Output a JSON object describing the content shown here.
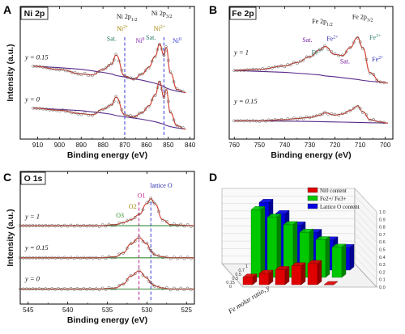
{
  "panel_letters": [
    "A",
    "B",
    "C",
    "D"
  ],
  "chart_data": [
    {
      "panel": "A",
      "type": "line",
      "title": "Ni 2p",
      "xlabel": "Binding energy (eV)",
      "ylabel": "Intensity (a.u.)",
      "xlim": [
        918,
        838
      ],
      "x_reversed": true,
      "xticks": [
        910,
        900,
        890,
        880,
        870,
        860,
        850,
        840
      ],
      "series": [
        {
          "name": "y = 0.15",
          "x": [
            912,
            900,
            890,
            885,
            880,
            876,
            874,
            870,
            866,
            862,
            859,
            856,
            854,
            852,
            851,
            849,
            846,
            842
          ],
          "y": [
            2.9,
            2.75,
            2.55,
            2.5,
            2.75,
            3.0,
            3.4,
            2.45,
            2.3,
            2.55,
            2.85,
            3.35,
            3.9,
            3.4,
            3.75,
            2.6,
            1.85,
            1.7
          ]
        },
        {
          "name": "y = 0",
          "x": [
            912,
            900,
            890,
            885,
            880,
            876,
            874,
            870,
            866,
            862,
            859,
            856,
            854,
            852,
            851,
            849,
            846,
            842
          ],
          "y": [
            1.0,
            0.9,
            0.75,
            0.7,
            0.95,
            1.15,
            1.5,
            0.7,
            0.6,
            0.8,
            1.1,
            1.6,
            2.2,
            1.5,
            1.85,
            0.8,
            0.2,
            0.05
          ]
        }
      ],
      "annotations": [
        "Sat.",
        "Ni 2p1/2",
        "Ni2+",
        "Ni0",
        "Sat.",
        "Ni 2p3/2",
        "Ni2+",
        "Ni0"
      ],
      "dashed_line_x": [
        870,
        852
      ]
    },
    {
      "panel": "B",
      "type": "line",
      "title": "Fe 2p",
      "xlabel": "Binding energy (eV)",
      "ylabel": "",
      "xlim": [
        762,
        697
      ],
      "x_reversed": true,
      "xticks": [
        760,
        750,
        740,
        730,
        720,
        710,
        700
      ],
      "series": [
        {
          "name": "y = 1",
          "x": [
            760,
            750,
            740,
            735,
            730,
            726,
            724,
            720,
            717,
            714,
            711,
            709,
            706,
            702,
            699
          ],
          "y": [
            3.0,
            3.05,
            3.2,
            3.35,
            3.6,
            3.9,
            4.05,
            3.7,
            3.65,
            4.0,
            4.45,
            4.0,
            2.9,
            2.5,
            2.45
          ]
        },
        {
          "name": "y = 0.15",
          "x": [
            760,
            750,
            740,
            735,
            730,
            726,
            724,
            720,
            717,
            714,
            711,
            709,
            706,
            702,
            699
          ],
          "y": [
            0.8,
            0.8,
            0.85,
            0.9,
            0.95,
            1.05,
            1.15,
            1.05,
            1.1,
            1.25,
            1.45,
            1.2,
            0.85,
            0.75,
            0.7
          ]
        }
      ],
      "annotations": [
        "Fe 2p1/2",
        "Fe 2p3/2",
        "Sat.",
        "Fe3+",
        "Fe2+",
        "Sat.",
        "Fe3+",
        "Fe2+"
      ]
    },
    {
      "panel": "C",
      "type": "line",
      "title": "O 1s",
      "xlabel": "Binding energy (eV)",
      "ylabel": "Intensity (a.u.)",
      "xlim": [
        546,
        524
      ],
      "x_reversed": true,
      "xticks": [
        545,
        540,
        535,
        530,
        525
      ],
      "series": [
        {
          "name": "y = 1",
          "x": [
            546,
            540,
            536,
            534,
            533,
            532,
            531,
            530,
            529.5,
            529,
            528,
            527,
            524
          ],
          "y": [
            3.2,
            3.2,
            3.2,
            3.25,
            3.35,
            3.5,
            3.75,
            4.3,
            4.55,
            4.3,
            3.5,
            3.25,
            3.2
          ]
        },
        {
          "name": "y = 0.15",
          "x": [
            546,
            540,
            536,
            534,
            533,
            532,
            531,
            530,
            529.5,
            529,
            528,
            527,
            524
          ],
          "y": [
            1.6,
            1.6,
            1.6,
            1.65,
            1.85,
            2.3,
            2.6,
            2.3,
            1.95,
            1.75,
            1.65,
            1.6,
            1.6
          ]
        },
        {
          "name": "y = 0",
          "x": [
            546,
            540,
            536,
            534,
            533,
            532,
            531,
            530,
            529.5,
            529,
            528,
            527,
            524
          ],
          "y": [
            0.05,
            0.05,
            0.05,
            0.1,
            0.3,
            0.7,
            0.95,
            0.6,
            0.35,
            0.2,
            0.1,
            0.05,
            0.05
          ]
        }
      ],
      "annotations": [
        "O3",
        "O2",
        "O1",
        "lattice O"
      ],
      "dashed_line_x": [
        531,
        529.5
      ]
    },
    {
      "panel": "D",
      "type": "bar",
      "subtype": "3d",
      "ylabel": "Fe molar ratio, y",
      "categories": [
        "0",
        "0.15",
        "0.3",
        "0.5",
        "0.7",
        "1"
      ],
      "zticks": [
        "0.0",
        "0.1",
        "0.2",
        "0.3",
        "0.4",
        "0.5",
        "0.6",
        "0.7",
        "0.8",
        "0.9",
        "1.0"
      ],
      "zlim": [
        0,
        1
      ],
      "series": [
        {
          "name": "Ni0 content",
          "color": "#e00000",
          "values": [
            0.1,
            0.15,
            0.2,
            0.25,
            0.28,
            0.0
          ]
        },
        {
          "name": "Fe2+/ Fe3+",
          "color": "#00c800",
          "values": [
            0.9,
            0.8,
            0.7,
            0.6,
            0.5,
            0.4
          ]
        },
        {
          "name": "Lattice O content",
          "color": "#0000e0",
          "values": [
            0.9,
            0.75,
            0.6,
            0.5,
            0.4,
            0.3
          ]
        }
      ],
      "legend_position": "top-right"
    }
  ]
}
